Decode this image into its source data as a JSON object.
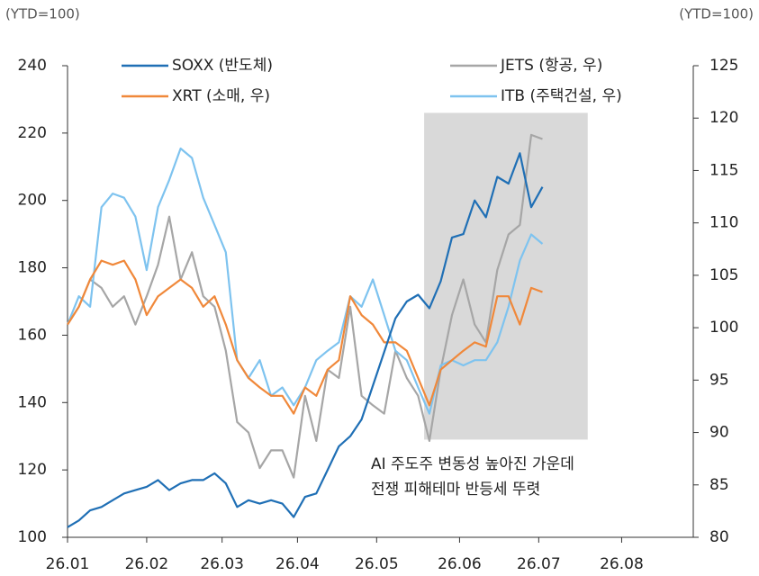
{
  "chart_data": {
    "type": "line",
    "y_label": "(YTD=100)",
    "y2_label": "(YTD=100)",
    "annotation": [
      "AI 주도주 변동성 높아진 가운데",
      "전쟁 피해테마 반등세 뚜렷"
    ],
    "highlight_x": [
      94.6,
      138
    ],
    "highlight_y": [
      129,
      226
    ],
    "highlight_color": "#d9d9d9",
    "x": [
      0,
      3,
      6,
      9,
      12,
      15,
      18,
      21,
      24,
      27,
      30,
      33,
      36,
      39,
      42,
      45,
      48,
      51,
      54,
      57,
      60,
      63,
      66,
      69,
      72,
      75,
      78,
      81,
      84,
      87,
      90,
      93,
      96,
      99,
      102,
      105,
      108,
      111,
      114,
      117,
      120,
      123,
      126
    ],
    "xlim": [
      0,
      166
    ],
    "xticks": [
      {
        "value": 0,
        "label": "26.01"
      },
      {
        "value": 21,
        "label": "26.02"
      },
      {
        "value": 41,
        "label": "26.03"
      },
      {
        "value": 61,
        "label": "26.04"
      },
      {
        "value": 82,
        "label": "26.05"
      },
      {
        "value": 104,
        "label": "26.06"
      },
      {
        "value": 125,
        "label": "26.07"
      },
      {
        "value": 147,
        "label": "26.08"
      }
    ],
    "ylim": [
      100,
      240
    ],
    "yticks": [
      100,
      120,
      140,
      160,
      180,
      200,
      220,
      240
    ],
    "y2lim": [
      80,
      125
    ],
    "y2ticks": [
      80,
      85,
      90,
      95,
      100,
      105,
      110,
      115,
      120,
      125
    ],
    "series": [
      {
        "name": "SOXX (반도체)",
        "color": "#1f6fb5",
        "values": [
          103,
          105,
          108,
          109,
          111,
          113,
          114,
          115,
          117,
          114,
          116,
          117,
          117,
          119,
          116,
          109,
          111,
          110,
          111,
          110,
          106,
          112,
          113,
          120,
          127,
          130,
          135,
          145,
          155,
          165,
          170,
          172,
          168,
          176,
          189,
          190,
          200,
          195,
          207,
          205,
          214,
          198,
          204
        ]
      },
      {
        "name": "XRT (소매, 우)",
        "color": "#f0883a",
        "axis": "y2",
        "values": [
          100.3,
          102,
          104.6,
          106.4,
          106,
          106.4,
          104.6,
          101.2,
          103,
          103.8,
          104.6,
          103.8,
          102,
          103,
          100.3,
          96.9,
          95.2,
          94.3,
          93.5,
          93.5,
          91.8,
          94.3,
          93.5,
          96,
          96.9,
          103,
          101.2,
          100.3,
          98.6,
          98.6,
          97.8,
          95.2,
          92.6,
          96,
          96.9,
          97.8,
          98.6,
          98.2,
          103,
          103,
          100.3,
          103.8,
          103.4
        ]
      },
      {
        "name": "JETS (항공, 우)",
        "color": "#a6a6a6",
        "axis": "y2",
        "values": [
          100.3,
          102,
          104.6,
          103.8,
          102,
          103,
          100.3,
          103,
          106,
          110.6,
          104.6,
          107.2,
          103,
          102,
          97.8,
          91,
          90,
          86.6,
          88.3,
          88.3,
          85.7,
          93.5,
          89.2,
          96,
          95.2,
          102,
          93.5,
          92.6,
          91.8,
          97.8,
          95.2,
          93.5,
          89.2,
          96,
          101.2,
          104.6,
          100.3,
          98.6,
          105.5,
          108.9,
          109.8,
          118.4,
          118
        ]
      },
      {
        "name": "ITB (주택건설, 우)",
        "color": "#7ec3ef",
        "axis": "y2",
        "values": [
          100.3,
          103,
          102,
          111.5,
          112.8,
          112.4,
          110.6,
          105.5,
          111.5,
          114.1,
          117.1,
          116.2,
          112.4,
          109.8,
          107.2,
          96.9,
          95.2,
          96.9,
          93.5,
          94.3,
          92.6,
          94.3,
          96.9,
          97.8,
          98.6,
          103,
          102,
          104.6,
          101.2,
          97.8,
          96.9,
          94.3,
          91.8,
          96.4,
          96.9,
          96.4,
          96.9,
          96.9,
          98.6,
          102,
          106.4,
          108.9,
          108
        ]
      }
    ]
  }
}
